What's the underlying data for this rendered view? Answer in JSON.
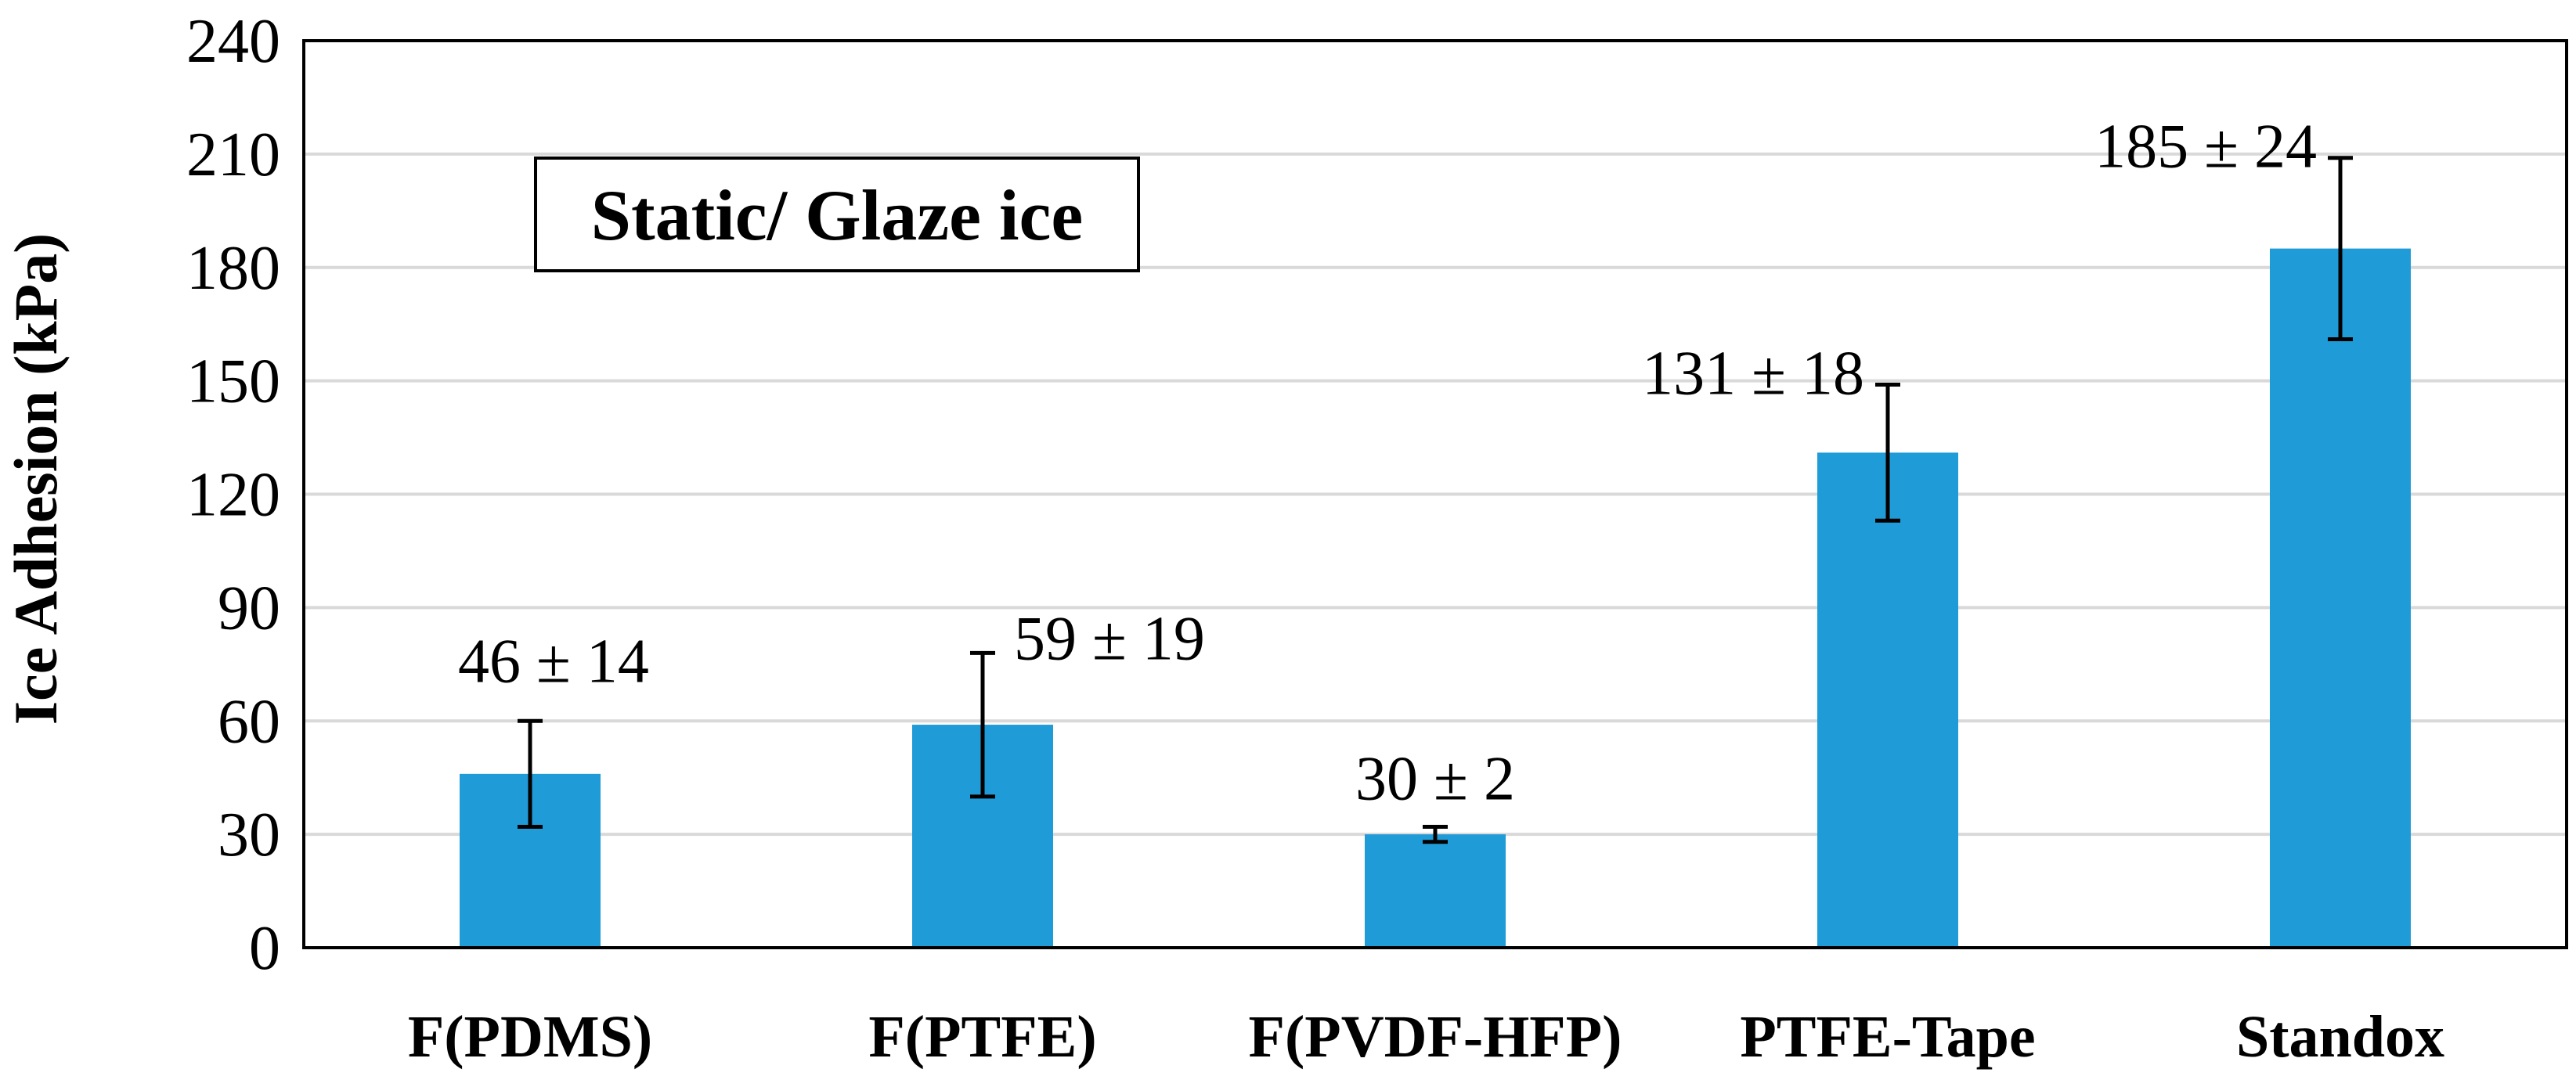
{
  "chart_data": {
    "type": "bar",
    "title": "",
    "categories": [
      "F(PDMS)",
      "F(PTFE)",
      "F(PVDF-HFP)",
      "PTFE-Tape",
      "Standox"
    ],
    "values": [
      46,
      59,
      30,
      131,
      185
    ],
    "errors": [
      14,
      19,
      2,
      18,
      24
    ],
    "data_labels": [
      "46 ± 14",
      "59 ± 19",
      "30 ± 2",
      "131 ± 18",
      "185 ± 24"
    ],
    "xlabel": "",
    "ylabel": "Ice Adhesion (kPa)",
    "ylim": [
      0,
      240
    ],
    "yticks": [
      0,
      30,
      60,
      90,
      120,
      150,
      180,
      210,
      240
    ],
    "grid": true,
    "bar_color": "#1f9bd7",
    "annotation": "Static/ Glaze ice"
  }
}
